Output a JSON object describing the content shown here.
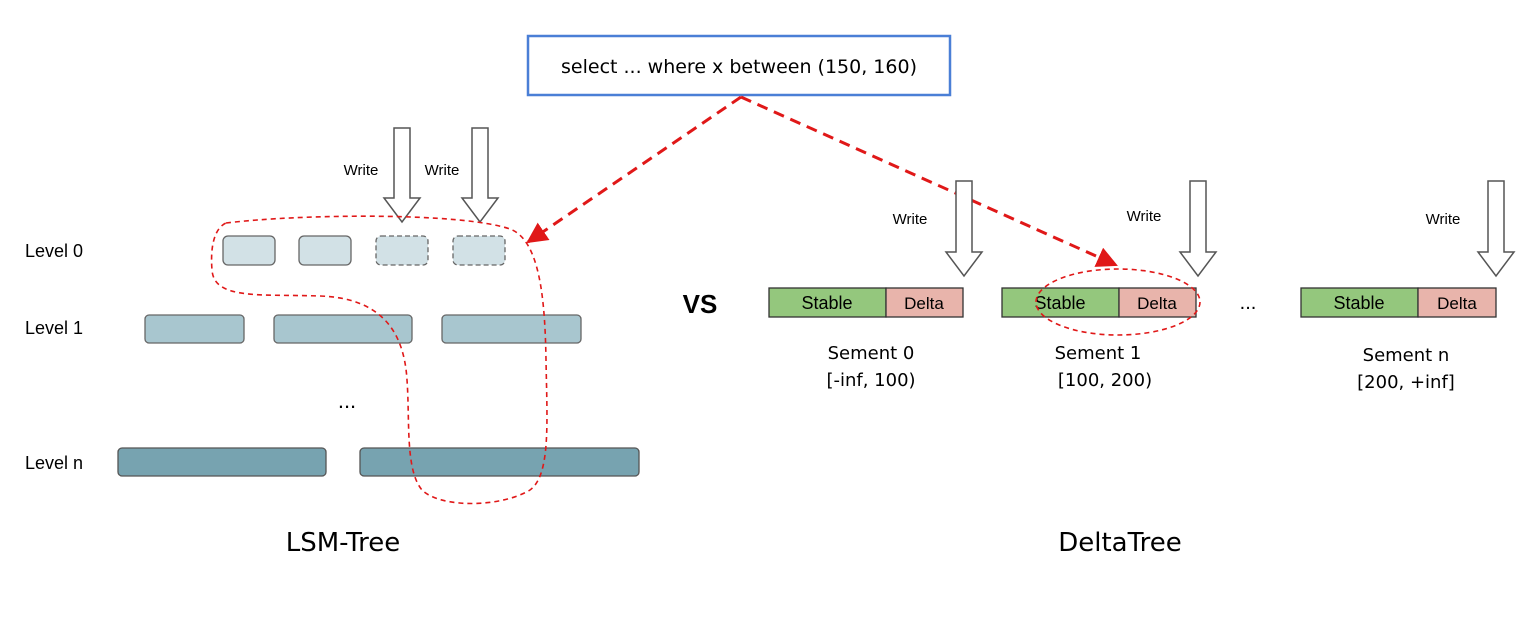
{
  "query": {
    "text": "select ... where x between (150, 160)"
  },
  "lsm": {
    "title": "LSM-Tree",
    "write_labels": [
      "Write",
      "Write"
    ],
    "levels": [
      {
        "label": "Level 0",
        "color": "#d2e1e6"
      },
      {
        "label": "Level 1",
        "color": "#a8c6cf"
      },
      {
        "label": "Level n",
        "color": "#77a3b0"
      }
    ],
    "ellipsis": "..."
  },
  "vs_label": "VS",
  "delta": {
    "title": "DeltaTree",
    "ellipsis": "...",
    "write_label": "Write",
    "segments": [
      {
        "stable": "Stable",
        "delta": "Delta",
        "name": "Sement 0",
        "range": "[-inf, 100)"
      },
      {
        "stable": "Stable",
        "delta": "Delta",
        "name": "Sement 1",
        "range": "[100, 200)"
      },
      {
        "stable": "Stable",
        "delta": "Delta",
        "name": "Sement n",
        "range": "[200, +inf]"
      }
    ]
  },
  "colors": {
    "query_border": "#4a7fd6",
    "highlight": "#e01818",
    "stable_fill": "#94c77d",
    "delta_fill": "#e8b4ab"
  }
}
